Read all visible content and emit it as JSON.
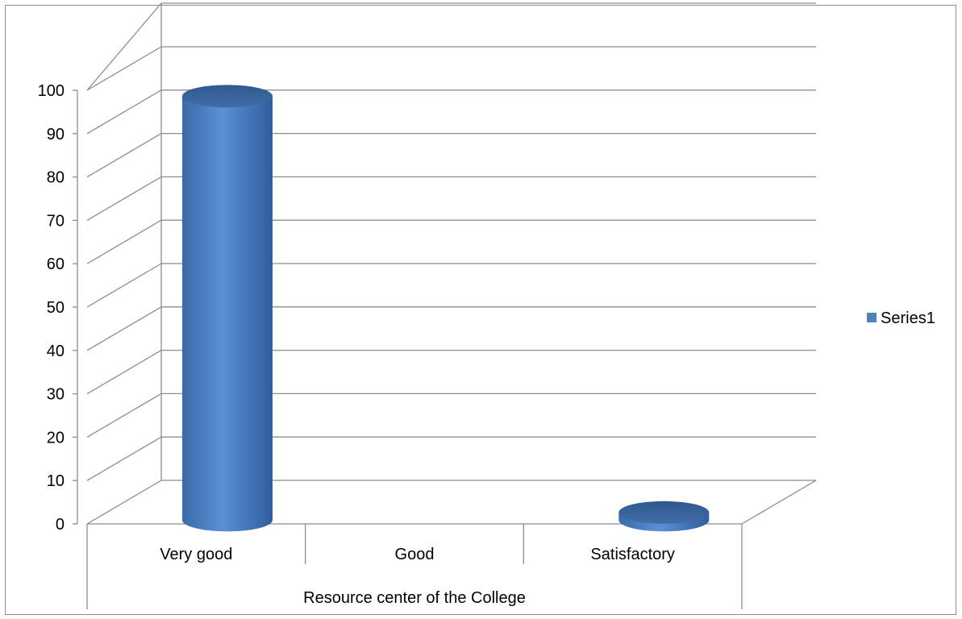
{
  "chart_data": {
    "type": "bar",
    "style": "3d-cylinder",
    "categories": [
      "Very good",
      "Good",
      "Satisfactory"
    ],
    "series": [
      {
        "name": "Series1",
        "values": [
          100,
          0,
          4
        ],
        "color": "#4f81bd"
      }
    ],
    "title": "",
    "xlabel": "Resource center of the College",
    "ylabel": "",
    "ylim": [
      0,
      100
    ],
    "yticks": [
      0,
      10,
      20,
      30,
      40,
      50,
      60,
      70,
      80,
      90,
      100
    ],
    "grid": true,
    "legend_position": "right"
  }
}
